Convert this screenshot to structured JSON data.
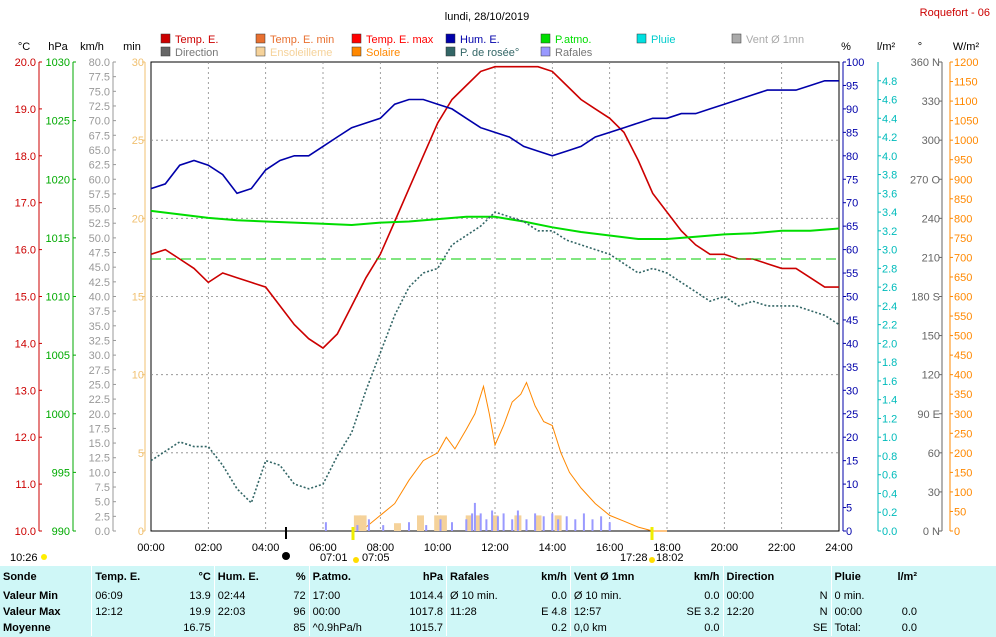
{
  "title": "lundi, 28/10/2019",
  "station": "Roquefort - 06",
  "legend": [
    {
      "label": "Temp. E.",
      "color": "#cc0000"
    },
    {
      "label": "Temp. E. min",
      "color": "#e87030"
    },
    {
      "label": "Temp. E. max",
      "color": "#ff0000"
    },
    {
      "label": "Hum. E.",
      "color": "#0000aa"
    },
    {
      "label": "P.atmo.",
      "color": "#00dd00"
    },
    {
      "label": "Pluie",
      "color": "#00e0e0"
    },
    {
      "label": "Vent Ø 1mn",
      "color": "#aaaaaa"
    },
    {
      "label": "Direction",
      "color": "#666666"
    },
    {
      "label": "Ensoleilleme",
      "color": "#f5d29a"
    },
    {
      "label": "Solaire",
      "color": "#ff8800"
    },
    {
      "label": "P. de rosée°",
      "color": "#336666"
    },
    {
      "label": "Rafales",
      "color": "#9999ff"
    }
  ],
  "units": {
    "temp": "°C",
    "press": "hPa",
    "wind": "km/h",
    "solar_min": "min",
    "hum": "%",
    "rain": "l/m²",
    "dir": "°",
    "solar": "W/m²"
  },
  "annotations": {
    "left_time": "10:26",
    "sunrise_label": "07:01",
    "sunrise_label2": "07:05",
    "sunset_label": "17:28",
    "sunset_label2": "18:02"
  },
  "colors": {
    "temp_axis": "#cc0000",
    "press_axis": "#00aa00",
    "wind_axis": "#999999",
    "solar_min_axis": "#f0c070",
    "hum_axis": "#0000aa",
    "rain_axis": "#00bbbb",
    "dir_axis": "#666666",
    "solar_axis": "#ff8800",
    "grid": "#888888",
    "summary_bg": "#cff7f7"
  },
  "chart_data": {
    "type": "line",
    "title": "lundi, 28/10/2019",
    "x_ticks": [
      "00:00",
      "02:00",
      "04:00",
      "06:00",
      "08:00",
      "10:00",
      "12:00",
      "14:00",
      "16:00",
      "18:00",
      "20:00",
      "22:00",
      "24:00"
    ],
    "x_range": [
      0,
      24
    ],
    "axes": {
      "temp": {
        "range": [
          10,
          20
        ],
        "ticks": [
          "10.0",
          "11.0",
          "12.0",
          "13.0",
          "14.0",
          "15.0",
          "16.0",
          "17.0",
          "18.0",
          "19.0",
          "20.0"
        ]
      },
      "press": {
        "range": [
          990,
          1030
        ],
        "ticks": [
          "990",
          "995",
          "1000",
          "1005",
          "1010",
          "1015",
          "1020",
          "1025",
          "1030"
        ]
      },
      "wind": {
        "range": [
          0,
          80
        ],
        "ticks": [
          "0.0",
          "2.5",
          "5.0",
          "7.5",
          "10.0",
          "12.5",
          "15.0",
          "17.5",
          "20.0",
          "22.5",
          "25.0",
          "27.5",
          "30.0",
          "32.5",
          "35.0",
          "37.5",
          "40.0",
          "42.5",
          "45.0",
          "47.5",
          "50.0",
          "52.5",
          "55.0",
          "57.5",
          "60.0",
          "62.5",
          "65.0",
          "67.5",
          "70.0",
          "72.5",
          "75.0",
          "77.5",
          "80.0"
        ]
      },
      "solar_min": {
        "range": [
          0,
          30
        ],
        "ticks": [
          "0",
          "5",
          "10",
          "15",
          "20",
          "25",
          "30"
        ]
      },
      "hum": {
        "range": [
          0,
          100
        ],
        "ticks": [
          "0",
          "5",
          "10",
          "15",
          "20",
          "25",
          "30",
          "35",
          "40",
          "45",
          "50",
          "55",
          "60",
          "65",
          "70",
          "75",
          "80",
          "85",
          "90",
          "95",
          "100"
        ]
      },
      "rain": {
        "range": [
          0,
          5
        ],
        "ticks": [
          "0.0",
          "0.2",
          "0.4",
          "0.6",
          "0.8",
          "1.0",
          "1.2",
          "1.4",
          "1.6",
          "1.8",
          "2.0",
          "2.2",
          "2.4",
          "2.6",
          "2.8",
          "3.0",
          "3.2",
          "3.4",
          "3.6",
          "3.8",
          "4.0",
          "4.2",
          "4.4",
          "4.6",
          "4.8"
        ]
      },
      "dir": {
        "range": [
          0,
          360
        ],
        "ticks": [
          "0 N",
          "30",
          "60",
          "90 E",
          "120",
          "150",
          "180 S",
          "210",
          "240",
          "270 O",
          "300",
          "330",
          "360 N"
        ]
      },
      "solar": {
        "range": [
          0,
          1200
        ],
        "ticks": [
          "0",
          "50",
          "100",
          "150",
          "200",
          "250",
          "300",
          "350",
          "400",
          "450",
          "500",
          "550",
          "600",
          "650",
          "700",
          "750",
          "800",
          "850",
          "900",
          "950",
          "1000",
          "1050",
          "1100",
          "1150",
          "1200"
        ]
      }
    },
    "series": [
      {
        "name": "Temp. E.",
        "axis": "temp",
        "color": "#cc0000",
        "x": [
          0,
          0.5,
          1,
          1.5,
          2,
          2.5,
          3,
          3.5,
          4,
          4.5,
          5,
          5.5,
          6,
          6.5,
          7,
          7.5,
          8,
          8.5,
          9,
          9.5,
          10,
          10.5,
          11,
          11.5,
          12,
          12.5,
          13,
          13.5,
          14,
          14.5,
          15,
          15.5,
          16,
          16.5,
          17,
          17.5,
          18,
          18.5,
          19,
          19.5,
          20,
          20.5,
          21,
          21.5,
          22,
          22.5,
          23,
          23.5,
          24
        ],
        "values": [
          15.9,
          16.0,
          15.8,
          15.6,
          15.3,
          15.5,
          15.4,
          15.3,
          15.2,
          14.8,
          14.4,
          14.1,
          13.9,
          14.2,
          14.8,
          15.4,
          15.9,
          16.6,
          17.3,
          18.0,
          18.7,
          19.2,
          19.5,
          19.8,
          19.9,
          19.9,
          19.9,
          19.9,
          19.8,
          19.5,
          19.2,
          19.0,
          18.8,
          18.5,
          17.9,
          17.2,
          16.8,
          16.4,
          16.1,
          15.9,
          15.9,
          15.8,
          15.8,
          15.7,
          15.6,
          15.6,
          15.4,
          15.2,
          15.2
        ]
      },
      {
        "name": "Hum. E.",
        "axis": "hum",
        "color": "#0000aa",
        "x": [
          0,
          0.5,
          1,
          1.5,
          2,
          2.5,
          3,
          3.5,
          4,
          4.5,
          5,
          5.5,
          6,
          6.5,
          7,
          7.5,
          8,
          8.5,
          9,
          9.5,
          10,
          10.5,
          11,
          11.5,
          12,
          12.5,
          13,
          13.5,
          14,
          14.5,
          15,
          15.5,
          16,
          16.5,
          17,
          17.5,
          18,
          18.5,
          19,
          19.5,
          20,
          20.5,
          21,
          21.5,
          22,
          22.5,
          23,
          23.5,
          24
        ],
        "values": [
          73,
          74,
          78,
          79,
          78,
          76,
          72,
          73,
          77,
          79,
          80,
          80,
          82,
          84,
          86,
          87,
          88,
          91,
          92,
          92,
          91,
          90,
          88,
          86,
          85,
          84,
          82,
          81,
          80,
          81,
          82,
          84,
          85,
          86,
          87,
          88,
          88,
          89,
          89,
          90,
          91,
          92,
          93,
          94,
          94,
          94,
          95,
          96,
          96
        ]
      },
      {
        "name": "P.atmo.",
        "axis": "press",
        "color": "#00dd00",
        "x": [
          0,
          1,
          2,
          3,
          4,
          5,
          6,
          7,
          8,
          9,
          10,
          11,
          12,
          13,
          14,
          15,
          16,
          17,
          18,
          19,
          20,
          21,
          22,
          23,
          24
        ],
        "values": [
          1017.3,
          1017.0,
          1016.7,
          1016.5,
          1016.4,
          1016.3,
          1016.2,
          1016.1,
          1016.3,
          1016.4,
          1016.6,
          1016.8,
          1016.8,
          1016.4,
          1015.9,
          1015.5,
          1015.2,
          1014.9,
          1014.9,
          1015.1,
          1015.3,
          1015.4,
          1015.6,
          1015.6,
          1015.8
        ]
      },
      {
        "name": "P. de rosée°",
        "axis": "temp",
        "color": "#336666",
        "x": [
          0,
          0.5,
          1,
          1.5,
          2,
          2.5,
          3,
          3.5,
          4,
          4.5,
          5,
          5.5,
          6,
          6.5,
          7,
          7.5,
          8,
          8.5,
          9,
          9.5,
          10,
          10.5,
          11,
          11.5,
          12,
          12.5,
          13,
          13.5,
          14,
          14.5,
          15,
          15.5,
          16,
          16.5,
          17,
          17.5,
          18,
          18.5,
          19,
          19.5,
          20,
          20.5,
          21,
          21.5,
          22,
          22.5,
          23,
          23.5,
          24
        ],
        "values": [
          11.5,
          11.7,
          11.9,
          11.8,
          11.8,
          11.4,
          10.9,
          10.6,
          11.5,
          11.4,
          11.0,
          10.9,
          11.0,
          11.6,
          12.1,
          13.0,
          13.8,
          14.6,
          15.2,
          15.5,
          15.6,
          16.1,
          16.3,
          16.5,
          16.8,
          16.7,
          16.6,
          16.4,
          16.4,
          16.2,
          16.1,
          16.0,
          15.9,
          15.7,
          15.5,
          15.6,
          15.5,
          15.3,
          15.1,
          14.9,
          15.0,
          14.8,
          14.9,
          14.8,
          14.8,
          14.8,
          14.7,
          14.6,
          14.4
        ]
      },
      {
        "name": "Solaire",
        "axis": "solar",
        "color": "#ff8800",
        "x": [
          7,
          7.5,
          8,
          8.5,
          9,
          9.5,
          10,
          10.3,
          10.6,
          11,
          11.3,
          11.6,
          11.8,
          12,
          12.3,
          12.6,
          12.9,
          13.1,
          13.4,
          13.7,
          14,
          14.3,
          14.6,
          15,
          15.5,
          16,
          16.5,
          17,
          17.5,
          18
        ],
        "values": [
          0,
          10,
          40,
          70,
          130,
          180,
          200,
          240,
          210,
          260,
          300,
          370,
          300,
          220,
          270,
          330,
          350,
          380,
          320,
          280,
          270,
          200,
          150,
          110,
          70,
          40,
          25,
          10,
          0,
          0
        ]
      },
      {
        "name": "Ensoleilleme",
        "axis": "solar_min",
        "color": "#f5d29a",
        "type": "bar",
        "x": [
          7.2,
          7.4,
          8.6,
          9.4,
          10.0,
          10.2,
          11.1,
          11.4,
          12.0,
          12.8,
          13.5,
          14.2
        ],
        "values": [
          1,
          1,
          0.5,
          1,
          1,
          1,
          1,
          1,
          1,
          1,
          1,
          1
        ]
      },
      {
        "name": "Rafales",
        "axis": "wind",
        "color": "#9999ff",
        "type": "bar",
        "x": [
          6.1,
          7.2,
          7.6,
          8.1,
          9.0,
          9.6,
          10.1,
          10.5,
          11.0,
          11.2,
          11.3,
          11.5,
          11.7,
          11.9,
          12.1,
          12.3,
          12.6,
          12.8,
          13.1,
          13.4,
          13.7,
          14.0,
          14.2,
          14.5,
          14.8,
          15.1,
          15.4,
          15.7,
          16.0
        ],
        "values": [
          1.5,
          1,
          2,
          1,
          1.5,
          1,
          2,
          1.5,
          2,
          3,
          4.8,
          3,
          2,
          3.5,
          2.5,
          3,
          2,
          3.5,
          2,
          3,
          2.5,
          3,
          2,
          2.5,
          2,
          3,
          2,
          2.5,
          1.5
        ]
      }
    ]
  },
  "summary": {
    "rows": [
      [
        "Sonde",
        "Temp. E.",
        "°C",
        "Hum. E.",
        "%",
        "P.atmo.",
        "hPa",
        "Rafales",
        "km/h",
        "Vent Ø 1mn",
        "km/h",
        "Direction",
        "",
        "Pluie",
        "l/m²"
      ],
      [
        "Valeur Min",
        "06:09",
        "13.9",
        "02:44",
        "72",
        "17:00",
        "1014.4",
        "Ø 10 min.",
        "0.0",
        "Ø 10 min.",
        "0.0",
        "00:00",
        "N",
        "0 min.",
        ""
      ],
      [
        "Valeur Max",
        "12:12",
        "19.9",
        "22:03",
        "96",
        "00:00",
        "1017.8",
        "11:28",
        "E 4.8",
        "12:57",
        "SE 3.2",
        "12:20",
        "N",
        "00:00",
        "0.0"
      ],
      [
        "Moyenne",
        "",
        "16.75",
        "",
        "85",
        "^0.9hPa/h",
        "1015.7",
        "",
        "0.2",
        "0,0 km",
        "0.0",
        "",
        "SE",
        "Total:",
        "0.0"
      ]
    ]
  }
}
